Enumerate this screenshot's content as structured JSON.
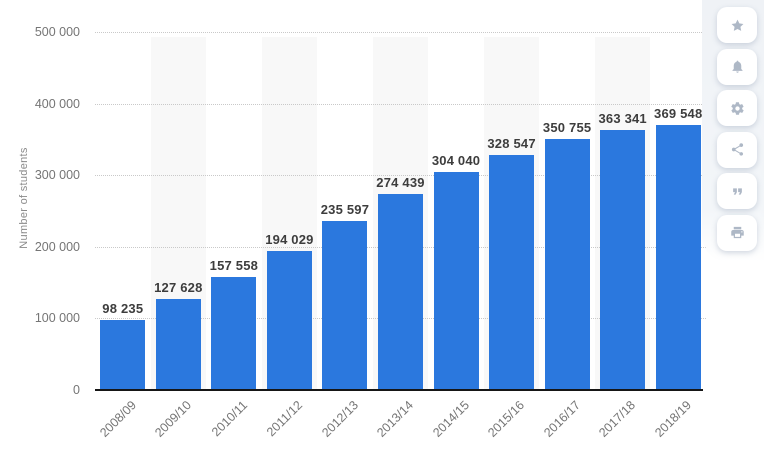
{
  "chart_data": {
    "type": "bar",
    "title": "",
    "xlabel": "",
    "ylabel": "Number of students",
    "categories": [
      "2008/09",
      "2009/10",
      "2010/11",
      "2011/12",
      "2012/13",
      "2013/14",
      "2014/15",
      "2015/16",
      "2016/17",
      "2017/18",
      "2018/19"
    ],
    "values": [
      98235,
      127628,
      157558,
      194029,
      235597,
      274439,
      304040,
      328547,
      350755,
      363341,
      369548
    ],
    "value_labels": [
      "98 235",
      "127 628",
      "157 558",
      "194 029",
      "235 597",
      "274 439",
      "304 040",
      "328 547",
      "350 755",
      "363 341",
      "369 548"
    ],
    "ylim": [
      0,
      500000
    ],
    "ytick_labels": [
      "0",
      "100 000",
      "200 000",
      "300 000",
      "400 000",
      "500 000"
    ],
    "grid": "horizontal-dotted",
    "legend": "none",
    "bar_color": "#2b78de",
    "stripe_color": "#f8f8f8",
    "axis_line_color": "#161616",
    "label_color": "#3d3d3d",
    "tick_color": "#757575"
  },
  "toolbar": {
    "icon_color": "#aeb8c6",
    "items": [
      {
        "name": "favorite",
        "icon": "star-icon"
      },
      {
        "name": "notifications",
        "icon": "bell-icon"
      },
      {
        "name": "settings",
        "icon": "gear-icon"
      },
      {
        "name": "share",
        "icon": "share-icon"
      },
      {
        "name": "cite",
        "icon": "quote-icon"
      },
      {
        "name": "print",
        "icon": "print-icon"
      }
    ]
  }
}
